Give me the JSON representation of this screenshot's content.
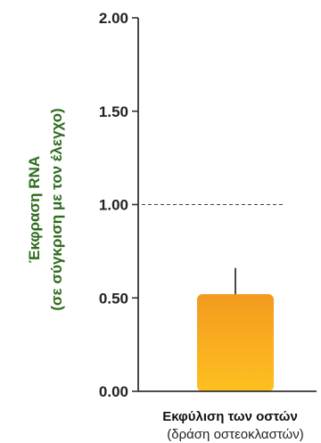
{
  "chart_data": {
    "type": "bar",
    "categories": [
      "Εκφύλιση των οστών"
    ],
    "category_sublabel": "(δράση οστεοκλαστών)",
    "values": [
      0.52
    ],
    "error_upper": [
      0.66
    ],
    "ylabel_line1": "Έκφραση RNA",
    "ylabel_line2": "(σε σύγκριση με τον έλεγχο)",
    "ylim": [
      0,
      2
    ],
    "yticks": [
      "0.00",
      "0.50",
      "1.00",
      "1.50",
      "2.00"
    ],
    "reference_line": 1.0,
    "grid": false,
    "colors": {
      "bar_top": "#F39A1F",
      "bar_bottom": "#FFC020",
      "ylabel": "#2E6B1E",
      "axis": "#333333"
    }
  }
}
